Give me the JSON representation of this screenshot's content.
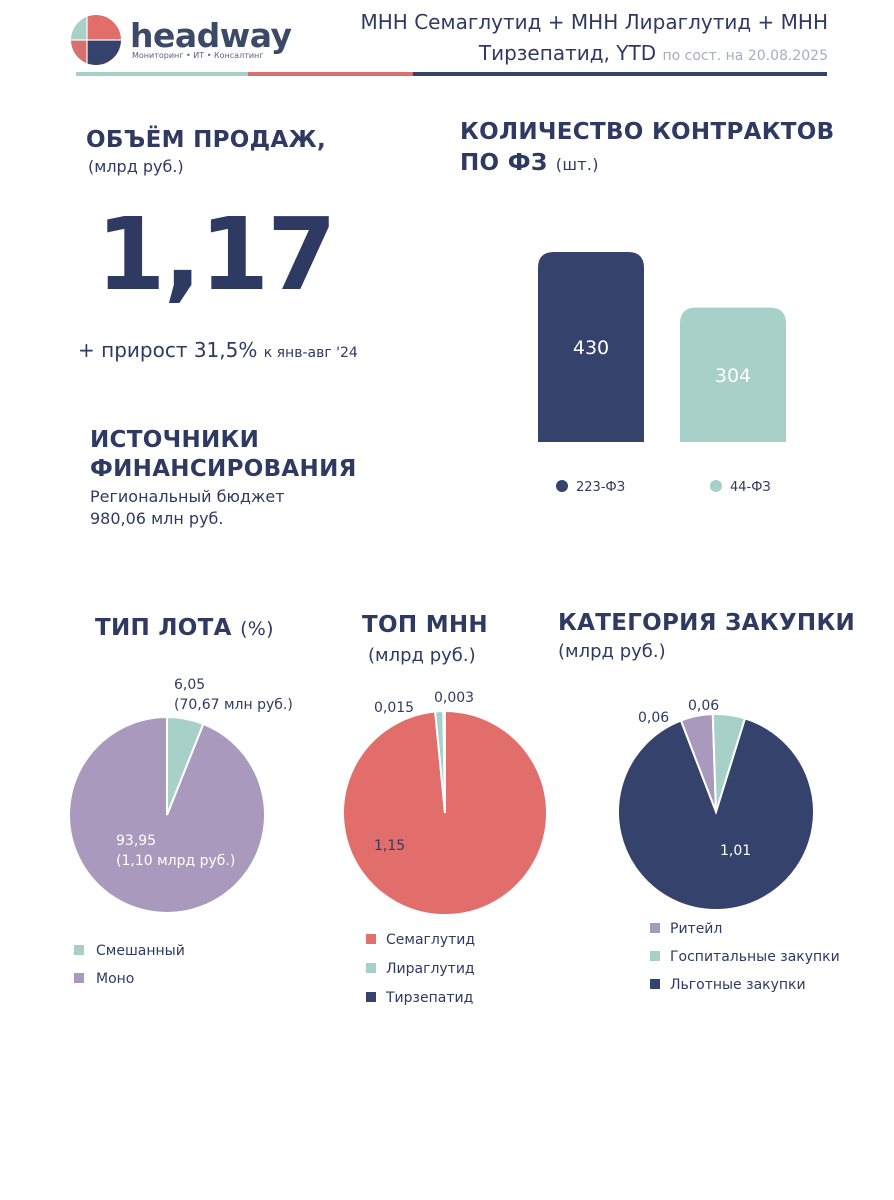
{
  "header": {
    "brand": "headway",
    "brand_tagline": "Мониторинг • ИТ • Консалтинг",
    "title_line1": "МНН Семаглутид + МНН Лираглутид + МНН",
    "title_line2": "Тирзепатид, YTD",
    "title_date": "по сост. на 20.08.2025"
  },
  "colors": {
    "navy": "#35426b",
    "teal": "#a6d0c8",
    "coral": "#e16e6b",
    "lilac": "#a99abd",
    "rule_red": "#d9706e"
  },
  "sales": {
    "title": "ОБЪЁМ ПРОДАЖ,",
    "unit": "(млрд руб.)",
    "value": "1,17",
    "growth_main": "+ прирост 31,5%",
    "growth_suffix": "к янв-авг '24"
  },
  "funding": {
    "title_line1": "ИСТОЧНИКИ",
    "title_line2": "ФИНАНСИРОВАНИЯ",
    "line1": "Региональный бюджет",
    "line2": "980,06 млн руб."
  },
  "chart_data": [
    {
      "type": "bar",
      "title": "КОЛИЧЕСТВО КОНТРАКТОВ",
      "title_line2": "ПО ФЗ",
      "unit": "(шт.)",
      "categories": [
        "223-ФЗ",
        "44-ФЗ"
      ],
      "values": [
        430,
        304
      ],
      "value_labels": [
        "430",
        "304"
      ],
      "colors": [
        "#35426b",
        "#a6d0c8"
      ],
      "legend": "bottom"
    },
    {
      "type": "pie",
      "title": "ТИП ЛОТА",
      "unit": "(%)",
      "categories": [
        "Смешанный",
        "Моно"
      ],
      "values": [
        6.05,
        93.95
      ],
      "labels": [
        "6,05",
        "93,95"
      ],
      "sublabels": [
        "(70,67 млн руб.)",
        "(1,10 млрд руб.)"
      ],
      "colors": [
        "#a6d0c8",
        "#a99abd"
      ],
      "legend": "bottom"
    },
    {
      "type": "pie",
      "title": "ТОП МНН",
      "unit": "(млрд руб.)",
      "categories": [
        "Семаглутид",
        "Лираглутид",
        "Тирзепатид"
      ],
      "values": [
        1.15,
        0.015,
        0.003
      ],
      "labels": [
        "1,15",
        "0,015",
        "0,003"
      ],
      "colors": [
        "#e16e6b",
        "#a6d0c8",
        "#35426b"
      ],
      "legend": "bottom"
    },
    {
      "type": "pie",
      "title": "КАТЕГОРИЯ ЗАКУПКИ",
      "unit": "(млрд руб.)",
      "categories": [
        "Ритейл",
        "Госпитальные закупки",
        "Льготные закупки"
      ],
      "values": [
        0.06,
        0.06,
        1.01
      ],
      "labels": [
        "0,06",
        "0,06",
        "1,01"
      ],
      "colors": [
        "#a99abd",
        "#a6d0c8",
        "#35426b"
      ],
      "legend": "bottom"
    }
  ]
}
